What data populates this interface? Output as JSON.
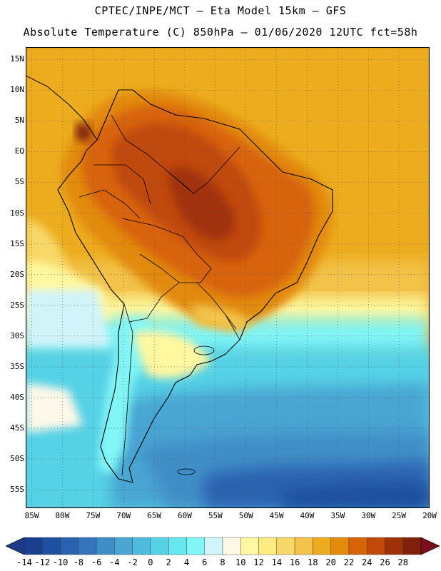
{
  "header": {
    "line1": "CPTEC/INPE/MCT –  Eta Model 15km – GFS",
    "line2": "Absolute Temperature (C) 850hPa – 01/06/2020 12UTC fct=58h"
  },
  "map": {
    "lat_labels": [
      "15N",
      "10N",
      "5N",
      "EQ",
      "5S",
      "10S",
      "15S",
      "20S",
      "25S",
      "30S",
      "35S",
      "40S",
      "45S",
      "50S",
      "55S"
    ],
    "lon_labels": [
      "85W",
      "80W",
      "75W",
      "70W",
      "65W",
      "60W",
      "55W",
      "50W",
      "45W",
      "40W",
      "35W",
      "30W",
      "25W",
      "20W"
    ],
    "lat_range": [
      -58,
      17
    ],
    "lon_range": [
      -86,
      -20
    ],
    "gridlines": "dotted"
  },
  "colorbar": {
    "tick_labels": [
      "-14",
      "-12",
      "-10",
      "-8",
      "-6",
      "-4",
      "-2",
      "0",
      "2",
      "4",
      "6",
      "8",
      "10",
      "12",
      "14",
      "16",
      "18",
      "20",
      "22",
      "24",
      "26",
      "28"
    ],
    "colors": [
      "#1a3f8f",
      "#1f4fa0",
      "#2a62b0",
      "#3575bb",
      "#3f8ec8",
      "#49a5d2",
      "#4fbcde",
      "#55d2e6",
      "#66e6ee",
      "#82f6f6",
      "#d0f4fa",
      "#fff8e8",
      "#fff8a0",
      "#ffec80",
      "#f8d868",
      "#f2c24a",
      "#ecac1e",
      "#e28a0a",
      "#d86408",
      "#c04808",
      "#a03008",
      "#80200a"
    ],
    "under_color": "#1e3a8a",
    "over_color": "#7a0e1e"
  }
}
